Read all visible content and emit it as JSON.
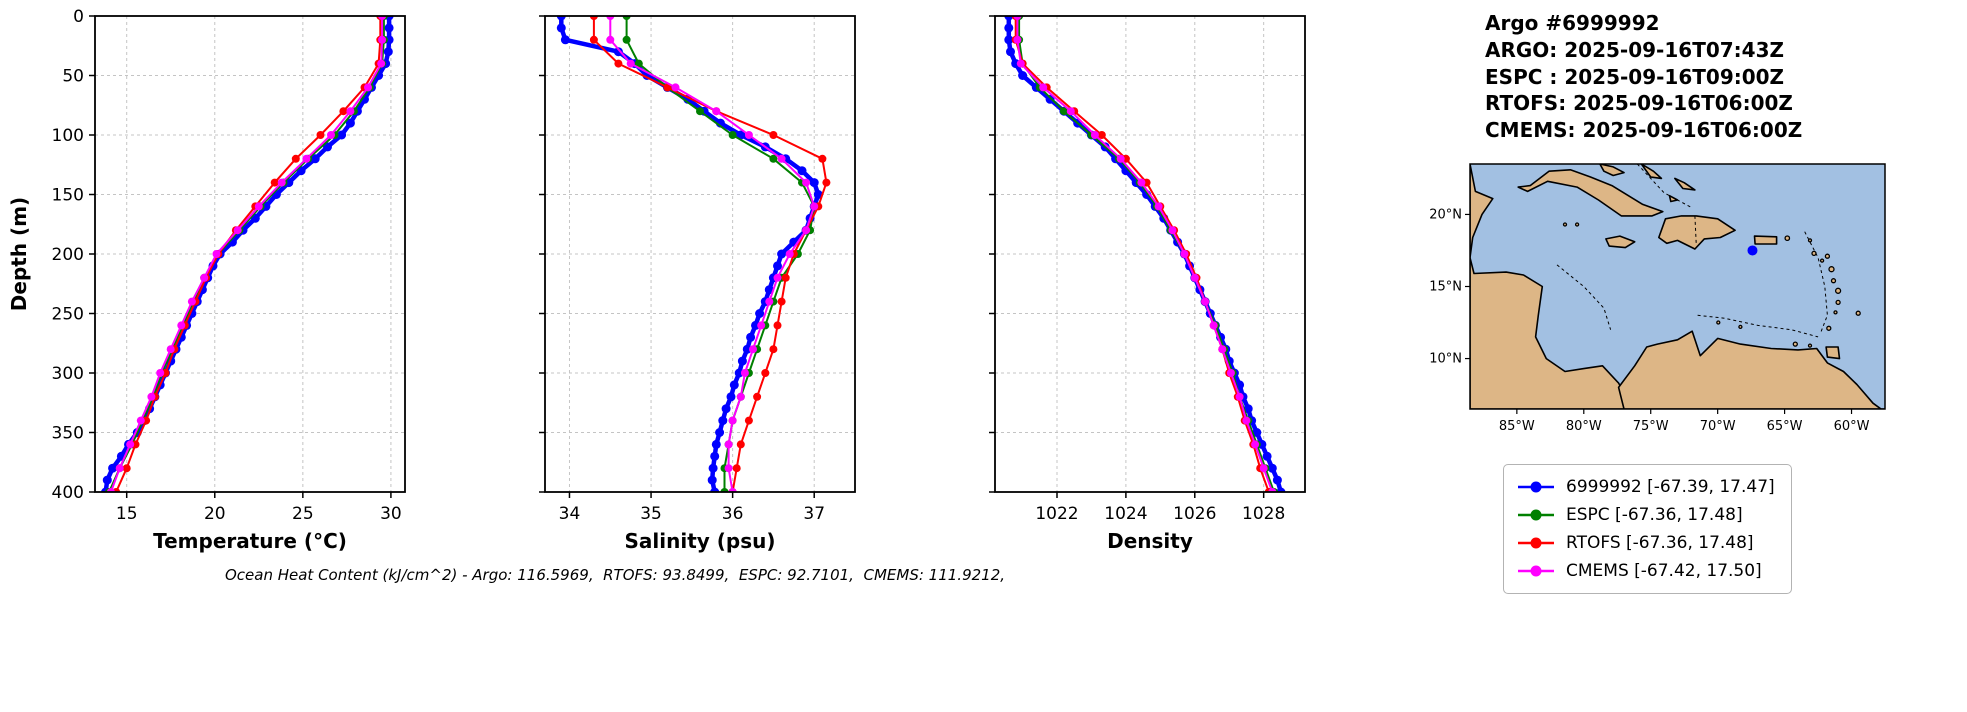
{
  "header": {
    "title": "Argo #6999992",
    "lines": [
      "ARGO: 2025-09-16T07:43Z",
      "ESPC : 2025-09-16T09:00Z",
      "RTOFS: 2025-09-16T06:00Z",
      "CMEMS: 2025-09-16T06:00Z"
    ]
  },
  "caption": "Ocean Heat Content (kJ/cm^2) - Argo: 116.5969,  RTOFS: 93.8499,  ESPC: 92.7101,  CMEMS: 111.9212,",
  "chart_data": {
    "type": "line",
    "ylabel": "Depth (m)",
    "ylim": [
      0,
      400
    ],
    "depth_ticks": [
      0,
      50,
      100,
      150,
      200,
      250,
      300,
      350,
      400
    ],
    "grid": "dashed",
    "panels": [
      {
        "key": "temperature",
        "xlabel": "Temperature (°C)",
        "xlim": [
          13.2,
          30.8
        ],
        "ticks": [
          15,
          20,
          25,
          30
        ]
      },
      {
        "key": "salinity",
        "xlabel": "Salinity (psu)",
        "xlim": [
          33.7,
          37.5
        ],
        "ticks": [
          34,
          35,
          36,
          37
        ]
      },
      {
        "key": "density",
        "xlabel": "Density",
        "xlim": [
          1020.2,
          1029.2
        ],
        "ticks": [
          1022,
          1024,
          1026,
          1028
        ]
      }
    ],
    "series": [
      {
        "name": "6999992",
        "color": "#0000ff",
        "line_width": 4.5,
        "marker_size": 4.5,
        "depths": [
          0,
          10,
          20,
          30,
          40,
          50,
          60,
          70,
          80,
          90,
          100,
          110,
          120,
          130,
          140,
          150,
          160,
          170,
          180,
          190,
          200,
          210,
          220,
          230,
          240,
          250,
          260,
          270,
          280,
          290,
          300,
          310,
          320,
          330,
          340,
          350,
          360,
          370,
          380,
          390,
          400
        ],
        "temperature": [
          29.9,
          29.9,
          29.9,
          29.85,
          29.7,
          29.3,
          28.9,
          28.5,
          28.1,
          27.7,
          27.2,
          26.4,
          25.7,
          24.9,
          24.2,
          23.5,
          22.9,
          22.3,
          21.6,
          21.0,
          20.3,
          19.9,
          19.6,
          19.3,
          19.0,
          18.7,
          18.4,
          18.1,
          17.8,
          17.5,
          17.2,
          16.9,
          16.6,
          16.3,
          16.0,
          15.6,
          15.1,
          14.7,
          14.2,
          13.9,
          13.8
        ],
        "salinity": [
          33.9,
          33.9,
          33.95,
          34.6,
          34.8,
          34.95,
          35.2,
          35.45,
          35.65,
          35.85,
          36.1,
          36.4,
          36.65,
          36.85,
          37.0,
          37.05,
          37.0,
          36.95,
          36.9,
          36.75,
          36.6,
          36.55,
          36.5,
          36.45,
          36.4,
          36.33,
          36.28,
          36.22,
          36.18,
          36.12,
          36.08,
          36.02,
          35.98,
          35.92,
          35.88,
          35.84,
          35.8,
          35.78,
          35.76,
          35.75,
          35.78
        ],
        "density": [
          1020.6,
          1020.6,
          1020.6,
          1020.65,
          1020.8,
          1021.0,
          1021.4,
          1021.8,
          1022.2,
          1022.6,
          1023.0,
          1023.4,
          1023.7,
          1024.0,
          1024.3,
          1024.6,
          1024.85,
          1025.1,
          1025.3,
          1025.5,
          1025.7,
          1025.85,
          1026.0,
          1026.15,
          1026.3,
          1026.45,
          1026.6,
          1026.75,
          1026.9,
          1027.0,
          1027.15,
          1027.3,
          1027.4,
          1027.55,
          1027.65,
          1027.8,
          1027.95,
          1028.1,
          1028.25,
          1028.4,
          1028.5
        ]
      },
      {
        "name": "ESPC",
        "color": "#008000",
        "line_width": 2,
        "marker_size": 4,
        "depths": [
          0,
          20,
          40,
          60,
          80,
          100,
          120,
          140,
          160,
          180,
          200,
          220,
          240,
          260,
          280,
          300,
          320,
          340,
          360,
          380,
          400
        ],
        "temperature": [
          29.6,
          29.6,
          29.5,
          28.8,
          27.9,
          26.8,
          25.3,
          23.9,
          22.6,
          21.4,
          20.2,
          19.4,
          18.8,
          18.2,
          17.6,
          17.0,
          16.5,
          15.9,
          15.3,
          14.6,
          14.0
        ],
        "salinity": [
          34.7,
          34.7,
          34.85,
          35.2,
          35.6,
          36.0,
          36.5,
          36.85,
          37.0,
          36.95,
          36.8,
          36.6,
          36.5,
          36.4,
          36.3,
          36.2,
          36.1,
          36.0,
          35.95,
          35.9,
          35.9
        ],
        "density": [
          1020.9,
          1020.9,
          1021.0,
          1021.5,
          1022.2,
          1023.0,
          1023.8,
          1024.4,
          1024.9,
          1025.3,
          1025.7,
          1026.0,
          1026.3,
          1026.6,
          1026.85,
          1027.1,
          1027.3,
          1027.55,
          1027.8,
          1028.05,
          1028.3
        ]
      },
      {
        "name": "RTOFS",
        "color": "#ff0000",
        "line_width": 2,
        "marker_size": 4,
        "depths": [
          0,
          20,
          40,
          60,
          80,
          100,
          120,
          140,
          160,
          180,
          200,
          220,
          240,
          260,
          280,
          300,
          320,
          340,
          360,
          380,
          400
        ],
        "temperature": [
          29.4,
          29.4,
          29.3,
          28.5,
          27.3,
          26.0,
          24.6,
          23.4,
          22.3,
          21.2,
          20.2,
          19.5,
          18.9,
          18.3,
          17.7,
          17.2,
          16.6,
          16.1,
          15.5,
          15.0,
          14.4
        ],
        "salinity": [
          34.3,
          34.3,
          34.6,
          35.2,
          35.8,
          36.5,
          37.1,
          37.15,
          37.05,
          36.9,
          36.75,
          36.65,
          36.6,
          36.55,
          36.5,
          36.4,
          36.3,
          36.2,
          36.1,
          36.05,
          36.0
        ],
        "density": [
          1020.8,
          1020.8,
          1021.0,
          1021.7,
          1022.5,
          1023.3,
          1024.0,
          1024.6,
          1025.0,
          1025.4,
          1025.75,
          1026.05,
          1026.3,
          1026.55,
          1026.8,
          1027.0,
          1027.25,
          1027.45,
          1027.7,
          1027.9,
          1028.15
        ]
      },
      {
        "name": "CMEMS",
        "color": "#ff00ff",
        "line_width": 2,
        "marker_size": 4,
        "depths": [
          0,
          20,
          40,
          60,
          80,
          100,
          120,
          140,
          160,
          180,
          200,
          220,
          240,
          260,
          280,
          300,
          320,
          340,
          360,
          380,
          400
        ],
        "temperature": [
          29.5,
          29.5,
          29.45,
          28.7,
          27.7,
          26.6,
          25.2,
          23.8,
          22.5,
          21.3,
          20.1,
          19.4,
          18.7,
          18.1,
          17.5,
          16.9,
          16.4,
          15.8,
          15.2,
          14.6,
          14.1
        ],
        "salinity": [
          34.5,
          34.5,
          34.75,
          35.3,
          35.8,
          36.2,
          36.6,
          36.9,
          37.0,
          36.9,
          36.7,
          36.55,
          36.45,
          36.35,
          36.25,
          36.15,
          36.1,
          36.0,
          35.95,
          35.95,
          36.0
        ],
        "density": [
          1020.85,
          1020.85,
          1020.95,
          1021.6,
          1022.4,
          1023.1,
          1023.85,
          1024.45,
          1024.95,
          1025.35,
          1025.7,
          1026.0,
          1026.3,
          1026.55,
          1026.8,
          1027.05,
          1027.3,
          1027.5,
          1027.75,
          1028.0,
          1028.25
        ]
      }
    ]
  },
  "legend": {
    "items": [
      {
        "label": "6999992 [-67.39, 17.47]",
        "color": "#0000ff"
      },
      {
        "label": "ESPC [-67.36, 17.48]",
        "color": "#008000"
      },
      {
        "label": "RTOFS [-67.36, 17.48]",
        "color": "#ff0000"
      },
      {
        "label": "CMEMS [-67.42, 17.50]",
        "color": "#ff00ff"
      }
    ]
  },
  "map": {
    "sea_color": "#a2c0e2",
    "land_color": "#ddb686",
    "coast_color": "#000000",
    "extent": {
      "lon": [
        -88.5,
        -57.5
      ],
      "lat": [
        6.5,
        23.5
      ]
    },
    "lon_ticks": [
      {
        "v": -85,
        "label": "85°W"
      },
      {
        "v": -80,
        "label": "80°W"
      },
      {
        "v": -75,
        "label": "75°W"
      },
      {
        "v": -70,
        "label": "70°W"
      },
      {
        "v": -65,
        "label": "65°W"
      },
      {
        "v": -60,
        "label": "60°W"
      }
    ],
    "lat_ticks": [
      {
        "v": 20,
        "label": "20°N"
      },
      {
        "v": 15,
        "label": "15°N"
      },
      {
        "v": 10,
        "label": "10°N"
      }
    ],
    "float_marker": {
      "lon": -67.4,
      "lat": 17.5,
      "color": "#0000ff"
    },
    "polygons": [
      {
        "name": "central-america",
        "pts": [
          [
            -88.5,
            23.5
          ],
          [
            -88.1,
            21.6
          ],
          [
            -86.8,
            21.1
          ],
          [
            -87.6,
            20.0
          ],
          [
            -88.3,
            18.4
          ],
          [
            -88.5,
            17.0
          ],
          [
            -88.2,
            15.9
          ],
          [
            -85.8,
            16.0
          ],
          [
            -84.5,
            15.8
          ],
          [
            -83.1,
            15.0
          ],
          [
            -83.4,
            13.0
          ],
          [
            -83.6,
            11.5
          ],
          [
            -82.8,
            10.0
          ],
          [
            -81.4,
            9.1
          ],
          [
            -80.0,
            9.3
          ],
          [
            -78.6,
            9.5
          ],
          [
            -77.4,
            8.3
          ],
          [
            -76.9,
            7.5
          ],
          [
            -77.0,
            6.5
          ],
          [
            -88.5,
            6.5
          ]
        ]
      },
      {
        "name": "south-america",
        "pts": [
          [
            -77.0,
            6.5
          ],
          [
            -77.4,
            8.0
          ],
          [
            -76.2,
            9.5
          ],
          [
            -75.3,
            10.8
          ],
          [
            -74.5,
            11.0
          ],
          [
            -73.0,
            11.3
          ],
          [
            -71.9,
            11.9
          ],
          [
            -71.3,
            10.2
          ],
          [
            -70.0,
            11.4
          ],
          [
            -68.3,
            11.0
          ],
          [
            -66.0,
            10.7
          ],
          [
            -64.0,
            10.6
          ],
          [
            -62.6,
            10.7
          ],
          [
            -61.8,
            9.7
          ],
          [
            -60.6,
            9.1
          ],
          [
            -59.6,
            8.2
          ],
          [
            -58.4,
            6.9
          ],
          [
            -57.5,
            6.3
          ],
          [
            -57.5,
            6.5
          ]
        ]
      },
      {
        "name": "cuba",
        "pts": [
          [
            -84.9,
            21.9
          ],
          [
            -84.0,
            22.0
          ],
          [
            -82.6,
            23.0
          ],
          [
            -81.0,
            23.1
          ],
          [
            -79.5,
            22.6
          ],
          [
            -77.9,
            22.0
          ],
          [
            -75.6,
            20.7
          ],
          [
            -74.1,
            20.2
          ],
          [
            -74.9,
            19.9
          ],
          [
            -77.2,
            19.9
          ],
          [
            -78.9,
            21.0
          ],
          [
            -80.5,
            21.9
          ],
          [
            -82.7,
            22.3
          ],
          [
            -84.2,
            21.6
          ]
        ]
      },
      {
        "name": "jamaica",
        "pts": [
          [
            -78.35,
            18.3
          ],
          [
            -77.3,
            18.5
          ],
          [
            -76.2,
            18.1
          ],
          [
            -76.9,
            17.7
          ],
          [
            -78.1,
            17.8
          ]
        ]
      },
      {
        "name": "hispaniola",
        "pts": [
          [
            -74.4,
            18.4
          ],
          [
            -73.9,
            19.7
          ],
          [
            -72.7,
            19.9
          ],
          [
            -71.6,
            19.9
          ],
          [
            -70.0,
            19.7
          ],
          [
            -68.7,
            18.9
          ],
          [
            -69.8,
            18.4
          ],
          [
            -71.0,
            18.3
          ],
          [
            -71.7,
            17.6
          ],
          [
            -73.0,
            18.2
          ],
          [
            -73.8,
            18.0
          ]
        ]
      },
      {
        "name": "puerto-rico",
        "pts": [
          [
            -67.25,
            18.5
          ],
          [
            -65.6,
            18.45
          ],
          [
            -65.6,
            17.95
          ],
          [
            -67.2,
            17.95
          ]
        ]
      },
      {
        "name": "bahamas-1",
        "pts": [
          [
            -78.8,
            23.5
          ],
          [
            -77.8,
            23.3
          ],
          [
            -77.0,
            22.9
          ],
          [
            -77.8,
            22.7
          ],
          [
            -78.5,
            23.0
          ]
        ]
      },
      {
        "name": "bahamas-2",
        "pts": [
          [
            -75.7,
            23.5
          ],
          [
            -74.8,
            23.0
          ],
          [
            -74.2,
            22.5
          ],
          [
            -75.0,
            22.6
          ]
        ]
      },
      {
        "name": "turks",
        "pts": [
          [
            -73.2,
            22.5
          ],
          [
            -72.5,
            22.2
          ],
          [
            -71.7,
            21.7
          ],
          [
            -72.6,
            21.8
          ]
        ]
      },
      {
        "name": "great-inagua",
        "pts": [
          [
            -73.6,
            21.3
          ],
          [
            -73.0,
            21.0
          ],
          [
            -73.5,
            20.9
          ]
        ]
      },
      {
        "name": "trinidad",
        "pts": [
          [
            -61.9,
            10.8
          ],
          [
            -61.0,
            10.8
          ],
          [
            -60.9,
            10.0
          ],
          [
            -61.8,
            10.1
          ]
        ]
      }
    ],
    "islands": [
      [
        -64.8,
        18.35,
        2.2
      ],
      [
        -63.1,
        18.2,
        1.5
      ],
      [
        -62.8,
        17.3,
        2
      ],
      [
        -62.2,
        16.8,
        1.5
      ],
      [
        -61.8,
        17.1,
        2
      ],
      [
        -61.5,
        16.2,
        2.5
      ],
      [
        -61.35,
        15.4,
        2
      ],
      [
        -61.0,
        14.7,
        2.5
      ],
      [
        -61.0,
        13.9,
        2
      ],
      [
        -61.2,
        13.2,
        1.5
      ],
      [
        -61.7,
        12.1,
        2
      ],
      [
        -59.5,
        13.15,
        2
      ],
      [
        -64.2,
        11.0,
        2
      ],
      [
        -63.1,
        10.9,
        1.5
      ],
      [
        -69.95,
        12.5,
        1.5
      ],
      [
        -68.3,
        12.2,
        1.5
      ],
      [
        -80.5,
        19.3,
        1.5
      ],
      [
        -81.4,
        19.3,
        1.5
      ]
    ],
    "dashed_lines": [
      [
        [
          -82.0,
          16.5
        ],
        [
          -80.0,
          15.0
        ],
        [
          -78.5,
          13.5
        ],
        [
          -78.0,
          12.0
        ]
      ],
      [
        [
          -71.5,
          13.0
        ],
        [
          -69.5,
          12.8
        ],
        [
          -67.0,
          12.3
        ],
        [
          -64.5,
          12.0
        ],
        [
          -62.5,
          11.5
        ]
      ],
      [
        [
          -63.5,
          18.8
        ],
        [
          -62.5,
          17.0
        ],
        [
          -62.0,
          15.0
        ],
        [
          -61.8,
          13.0
        ],
        [
          -62.3,
          11.8
        ]
      ],
      [
        [
          -71.7,
          19.9
        ],
        [
          -71.6,
          18.0
        ]
      ],
      [
        [
          -76.0,
          23.5
        ],
        [
          -74.0,
          21.5
        ],
        [
          -72.0,
          20.5
        ]
      ]
    ]
  }
}
